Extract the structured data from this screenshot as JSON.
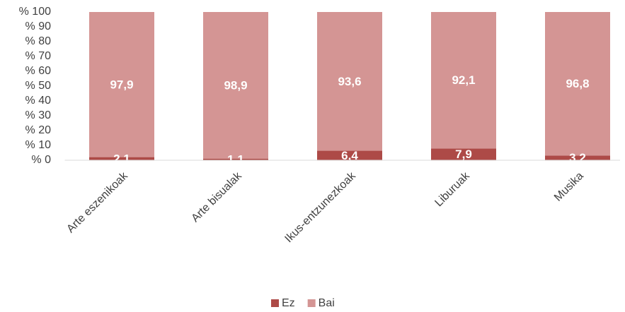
{
  "chart_data": {
    "type": "stacked_bar",
    "categories": [
      "Arte eszenikoak",
      "Arte bisualak",
      "Ikus-entzunezkoak",
      "Liburuak",
      "Musika"
    ],
    "series": [
      {
        "name": "Ez",
        "color": "#ad4a47",
        "values": [
          2.1,
          1.1,
          6.4,
          7.9,
          3.2
        ],
        "value_labels": [
          "2,1",
          "1,1",
          "6,4",
          "7,9",
          "3,2"
        ]
      },
      {
        "name": "Bai",
        "color": "#d49594",
        "values": [
          97.9,
          98.9,
          93.6,
          92.1,
          96.8
        ],
        "value_labels": [
          "97,9",
          "98,9",
          "93,6",
          "92,1",
          "96,8"
        ]
      }
    ],
    "ylim": [
      0,
      100
    ],
    "yticks": [
      {
        "value": 0,
        "label": "% 0"
      },
      {
        "value": 10,
        "label": "% 10"
      },
      {
        "value": 20,
        "label": "% 20"
      },
      {
        "value": 30,
        "label": "% 30"
      },
      {
        "value": 40,
        "label": "% 40"
      },
      {
        "value": 50,
        "label": "% 50"
      },
      {
        "value": 60,
        "label": "% 60"
      },
      {
        "value": 70,
        "label": "% 70"
      },
      {
        "value": 80,
        "label": "% 80"
      },
      {
        "value": 90,
        "label": "% 90"
      },
      {
        "value": 100,
        "label": "% 100"
      }
    ],
    "grid": false,
    "legend": "bottom"
  }
}
